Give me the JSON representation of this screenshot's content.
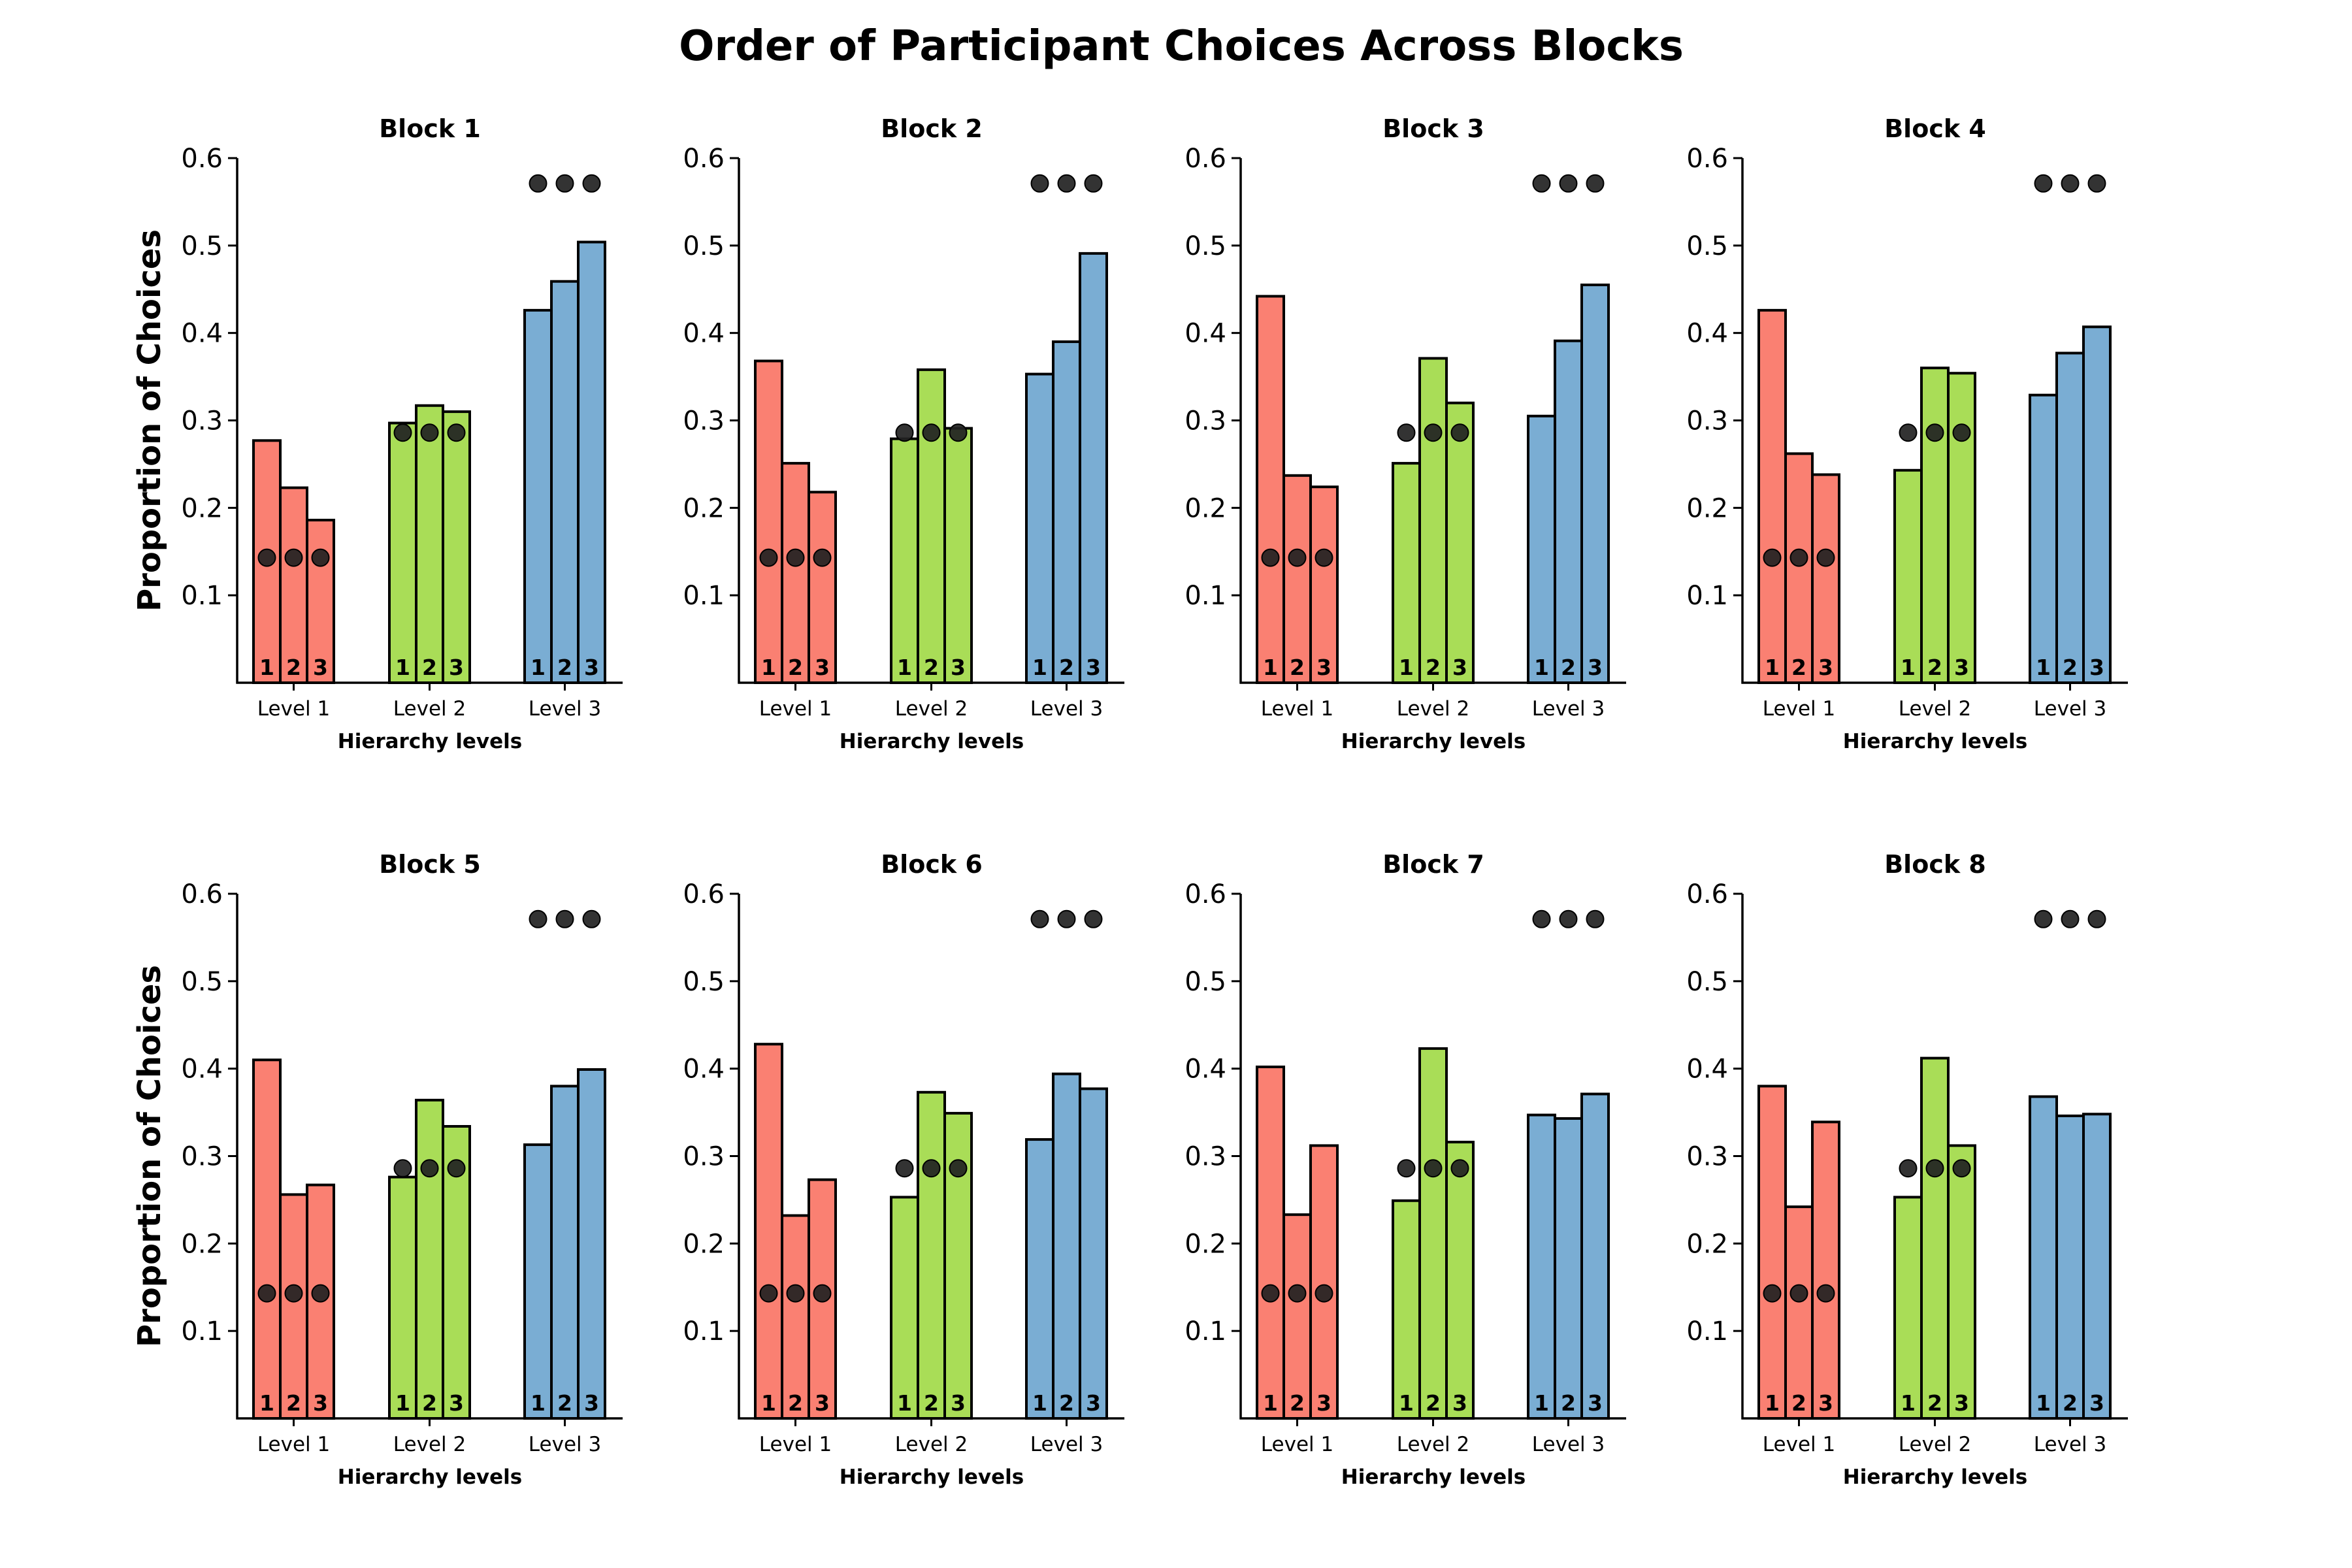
{
  "title": "Order of Participant Choices Across Blocks",
  "level_colors": [
    "#fa8072",
    "#a9dd57",
    "#7aadd3"
  ],
  "chart_data": [
    {
      "type": "bar",
      "title": "Block 1",
      "xlabel": "Hierarchy levels",
      "ylabel": "Proportion of Choices",
      "ylim": [
        0,
        0.6
      ],
      "yticks": [
        "0.1",
        "0.2",
        "0.3",
        "0.4",
        "0.5",
        "0.6"
      ],
      "categories": [
        "Level 1",
        "Level 2",
        "Level 3"
      ],
      "bar_labels": [
        "1",
        "2",
        "3"
      ],
      "reference_dots": [
        0.143,
        0.286,
        0.571
      ],
      "values": [
        [
          0.277,
          0.223,
          0.186
        ],
        [
          0.297,
          0.317,
          0.31
        ],
        [
          0.426,
          0.459,
          0.504
        ]
      ]
    },
    {
      "type": "bar",
      "title": "Block 2",
      "xlabel": "Hierarchy levels",
      "ylabel": "",
      "ylim": [
        0,
        0.6
      ],
      "yticks": [
        "0.1",
        "0.2",
        "0.3",
        "0.4",
        "0.5",
        "0.6"
      ],
      "categories": [
        "Level 1",
        "Level 2",
        "Level 3"
      ],
      "bar_labels": [
        "1",
        "2",
        "3"
      ],
      "reference_dots": [
        0.143,
        0.286,
        0.571
      ],
      "values": [
        [
          0.368,
          0.251,
          0.218
        ],
        [
          0.279,
          0.358,
          0.291
        ],
        [
          0.353,
          0.39,
          0.491
        ]
      ]
    },
    {
      "type": "bar",
      "title": "Block 3",
      "xlabel": "Hierarchy levels",
      "ylabel": "",
      "ylim": [
        0,
        0.6
      ],
      "yticks": [
        "0.1",
        "0.2",
        "0.3",
        "0.4",
        "0.5",
        "0.6"
      ],
      "categories": [
        "Level 1",
        "Level 2",
        "Level 3"
      ],
      "bar_labels": [
        "1",
        "2",
        "3"
      ],
      "reference_dots": [
        0.143,
        0.286,
        0.571
      ],
      "values": [
        [
          0.442,
          0.237,
          0.224
        ],
        [
          0.251,
          0.371,
          0.32
        ],
        [
          0.305,
          0.391,
          0.455
        ]
      ]
    },
    {
      "type": "bar",
      "title": "Block 4",
      "xlabel": "Hierarchy levels",
      "ylabel": "",
      "ylim": [
        0,
        0.6
      ],
      "yticks": [
        "0.1",
        "0.2",
        "0.3",
        "0.4",
        "0.5",
        "0.6"
      ],
      "categories": [
        "Level 1",
        "Level 2",
        "Level 3"
      ],
      "bar_labels": [
        "1",
        "2",
        "3"
      ],
      "reference_dots": [
        0.143,
        0.286,
        0.571
      ],
      "values": [
        [
          0.426,
          0.262,
          0.238
        ],
        [
          0.243,
          0.36,
          0.354
        ],
        [
          0.329,
          0.377,
          0.407
        ]
      ]
    },
    {
      "type": "bar",
      "title": "Block 5",
      "xlabel": "Hierarchy levels",
      "ylabel": "Proportion of Choices",
      "ylim": [
        0,
        0.6
      ],
      "yticks": [
        "0.1",
        "0.2",
        "0.3",
        "0.4",
        "0.5",
        "0.6"
      ],
      "categories": [
        "Level 1",
        "Level 2",
        "Level 3"
      ],
      "bar_labels": [
        "1",
        "2",
        "3"
      ],
      "reference_dots": [
        0.143,
        0.286,
        0.571
      ],
      "values": [
        [
          0.41,
          0.256,
          0.267
        ],
        [
          0.276,
          0.364,
          0.334
        ],
        [
          0.313,
          0.38,
          0.399
        ]
      ]
    },
    {
      "type": "bar",
      "title": "Block 6",
      "xlabel": "Hierarchy levels",
      "ylabel": "",
      "ylim": [
        0,
        0.6
      ],
      "yticks": [
        "0.1",
        "0.2",
        "0.3",
        "0.4",
        "0.5",
        "0.6"
      ],
      "categories": [
        "Level 1",
        "Level 2",
        "Level 3"
      ],
      "bar_labels": [
        "1",
        "2",
        "3"
      ],
      "reference_dots": [
        0.143,
        0.286,
        0.571
      ],
      "values": [
        [
          0.428,
          0.232,
          0.273
        ],
        [
          0.253,
          0.373,
          0.349
        ],
        [
          0.319,
          0.394,
          0.377
        ]
      ]
    },
    {
      "type": "bar",
      "title": "Block 7",
      "xlabel": "Hierarchy levels",
      "ylabel": "",
      "ylim": [
        0,
        0.6
      ],
      "yticks": [
        "0.1",
        "0.2",
        "0.3",
        "0.4",
        "0.5",
        "0.6"
      ],
      "categories": [
        "Level 1",
        "Level 2",
        "Level 3"
      ],
      "bar_labels": [
        "1",
        "2",
        "3"
      ],
      "reference_dots": [
        0.143,
        0.286,
        0.571
      ],
      "values": [
        [
          0.402,
          0.233,
          0.312
        ],
        [
          0.249,
          0.423,
          0.316
        ],
        [
          0.347,
          0.343,
          0.371
        ]
      ]
    },
    {
      "type": "bar",
      "title": "Block 8",
      "xlabel": "Hierarchy levels",
      "ylabel": "",
      "ylim": [
        0,
        0.6
      ],
      "yticks": [
        "0.1",
        "0.2",
        "0.3",
        "0.4",
        "0.5",
        "0.6"
      ],
      "categories": [
        "Level 1",
        "Level 2",
        "Level 3"
      ],
      "bar_labels": [
        "1",
        "2",
        "3"
      ],
      "reference_dots": [
        0.143,
        0.286,
        0.571
      ],
      "values": [
        [
          0.38,
          0.242,
          0.339
        ],
        [
          0.253,
          0.412,
          0.312
        ],
        [
          0.368,
          0.346,
          0.348
        ]
      ]
    }
  ]
}
